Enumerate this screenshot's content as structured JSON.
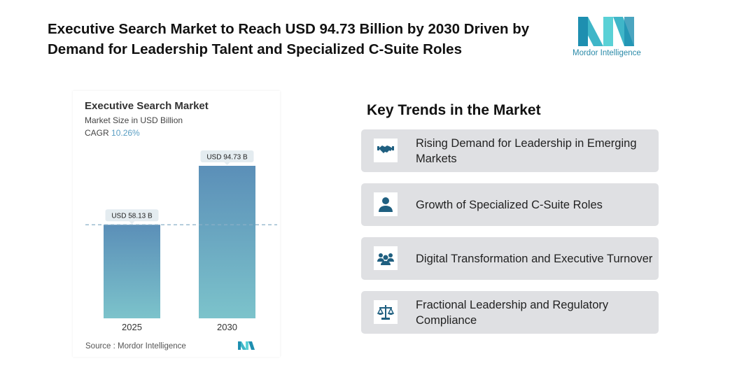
{
  "title": "Executive Search Market to Reach USD 94.73 Billion by 2030 Driven by Demand for Leadership Talent and Specialized C-Suite Roles",
  "logo": {
    "text": "Mordor Intelligence",
    "colors": [
      "#3fb6c8",
      "#1e5f8e",
      "#5ad1d6"
    ]
  },
  "chart_data": {
    "type": "bar",
    "title": "Executive Search Market",
    "subtitle": "Market Size in USD Billion",
    "cagr_label": "CAGR",
    "cagr_value": "10.26%",
    "categories": [
      "2025",
      "2030"
    ],
    "values": [
      58.13,
      94.73
    ],
    "data_labels": [
      "USD 58.13 B",
      "USD 94.73 B"
    ],
    "ylim": [
      0,
      94.73
    ],
    "reference_line": "dashed at 2025 value",
    "source": "Source :  Mordor Intelligence",
    "bar_colors": {
      "top": "#5b8fb8",
      "bottom": "#7cc3cb"
    }
  },
  "trends": {
    "heading": "Key Trends in the Market",
    "icon_color": "#1f5f80",
    "items": [
      {
        "label": "Rising Demand for Leadership in Emerging Markets",
        "icon": "handshake-icon"
      },
      {
        "label": "Growth of Specialized C-Suite Roles",
        "icon": "person-icon"
      },
      {
        "label": "Digital Transformation and Executive Turnover",
        "icon": "group-icon"
      },
      {
        "label": "Fractional Leadership and Regulatory Compliance",
        "icon": "scales-icon"
      }
    ]
  }
}
